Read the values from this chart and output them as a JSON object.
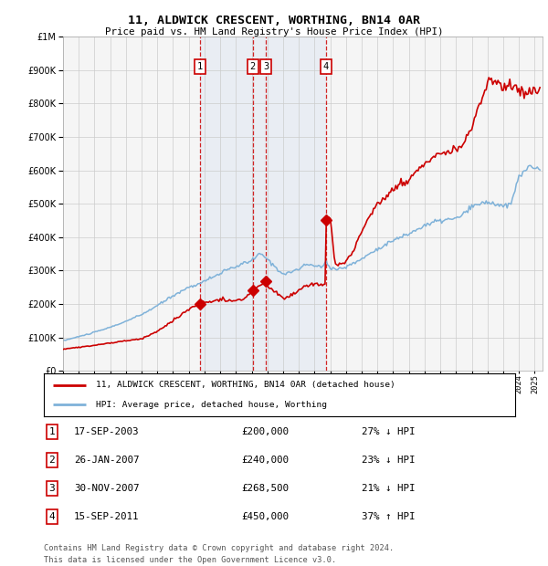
{
  "title_line1": "11, ALDWICK CRESCENT, WORTHING, BN14 0AR",
  "title_line2": "Price paid vs. HM Land Registry's House Price Index (HPI)",
  "hpi_color": "#7fb2d9",
  "price_color": "#cc0000",
  "background_color": "#ffffff",
  "plot_bg_color": "#f5f5f5",
  "grid_color": "#cccccc",
  "shade_color": "#c8d8ee",
  "transactions": [
    {
      "id": 1,
      "date_dec": 2003.72,
      "price": 200000,
      "label": "1"
    },
    {
      "id": 2,
      "date_dec": 2007.07,
      "price": 240000,
      "label": "2"
    },
    {
      "id": 3,
      "date_dec": 2007.92,
      "price": 268500,
      "label": "3"
    },
    {
      "id": 4,
      "date_dec": 2011.71,
      "price": 450000,
      "label": "4"
    }
  ],
  "transaction_table": [
    {
      "id": "1",
      "date": "17-SEP-2003",
      "price": "£200,000",
      "pct": "27% ↓ HPI"
    },
    {
      "id": "2",
      "date": "26-JAN-2007",
      "price": "£240,000",
      "pct": "23% ↓ HPI"
    },
    {
      "id": "3",
      "date": "30-NOV-2007",
      "price": "£268,500",
      "pct": "21% ↓ HPI"
    },
    {
      "id": "4",
      "date": "15-SEP-2011",
      "price": "£450,000",
      "pct": "37% ↑ HPI"
    }
  ],
  "legend_line1": "11, ALDWICK CRESCENT, WORTHING, BN14 0AR (detached house)",
  "legend_line2": "HPI: Average price, detached house, Worthing",
  "footer_line1": "Contains HM Land Registry data © Crown copyright and database right 2024.",
  "footer_line2": "This data is licensed under the Open Government Licence v3.0.",
  "ylim": [
    0,
    1000000
  ],
  "xlim_start": 1995.0,
  "xlim_end": 2025.5
}
